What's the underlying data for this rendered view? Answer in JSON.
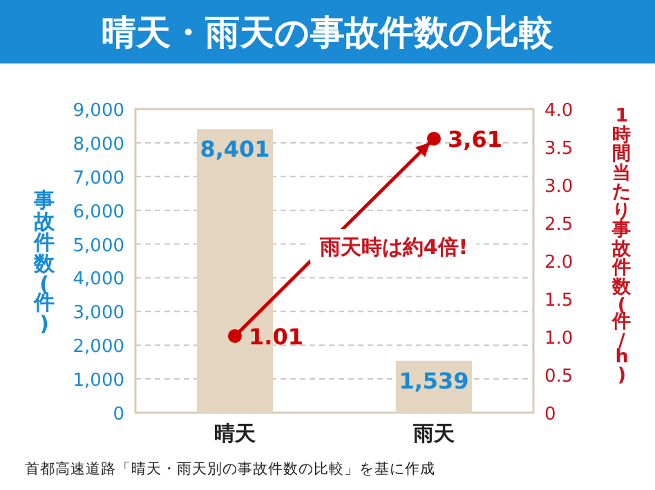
{
  "chart_data": {
    "type": "bar",
    "title": "晴天・雨天の事故件数の比較",
    "categories": [
      "晴天",
      "雨天"
    ],
    "series": [
      {
        "color": "#e3d5bf",
        "values": [
          8401,
          1539
        ],
        "value_labels": [
          "8,401",
          "1,539"
        ]
      },
      {
        "type": "line",
        "axis": "y2",
        "color": "#cc0000",
        "values": [
          1.01,
          3.61
        ],
        "value_labels": [
          "1.01",
          "3,61"
        ],
        "marker": "circle"
      }
    ],
    "ylabel": "事故件数(件)",
    "y2label": "1時間当たり事故件数(件/h)",
    "ylim": [
      0,
      9000
    ],
    "yticks": [
      0,
      {
        "value": 1000,
        "label": "1,000"
      },
      {
        "value": 2000,
        "label": "2,000"
      },
      {
        "value": 3000,
        "label": "3,000"
      },
      {
        "value": 4000,
        "label": "4,000"
      },
      {
        "value": 5000,
        "label": "5,000"
      },
      {
        "value": 6000,
        "label": "6,000"
      },
      {
        "value": 7000,
        "label": "7,000"
      },
      {
        "value": 8000,
        "label": "8,000"
      },
      {
        "value": 9000,
        "label": "9,000"
      }
    ],
    "y2lim": [
      0,
      4
    ],
    "y2ticks": [
      0,
      0.5,
      {
        "value": 1,
        "label": "1.0"
      },
      1.5,
      {
        "value": 2,
        "label": "2.0"
      },
      2.5,
      {
        "value": 3,
        "label": "3.0"
      },
      3.5,
      {
        "value": 4,
        "label": "4.0"
      }
    ],
    "grid": "y",
    "annotations": [
      "雨天時は約4倍!",
      "首都高速道路「晴天・雨天別の事故件数の比較」を基に作成"
    ]
  }
}
